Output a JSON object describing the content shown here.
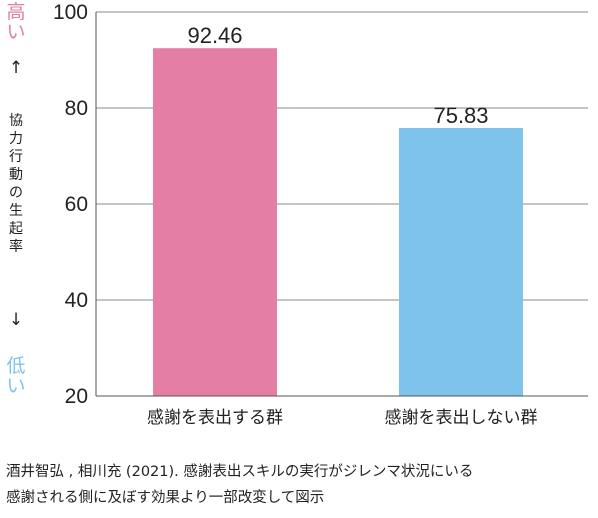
{
  "chart_data": {
    "type": "bar",
    "categories": [
      "感謝を表出する群",
      "感謝を表出しない群"
    ],
    "values": [
      92.46,
      75.83
    ],
    "value_labels": [
      "92.46",
      "75.83"
    ],
    "colors": [
      "#e57ea4",
      "#7ec3ea"
    ],
    "ylim": [
      20,
      100
    ],
    "yticks": [
      20,
      40,
      60,
      80,
      100
    ],
    "grid": true,
    "ylabel": {
      "high": "高い",
      "up_arrow": "↑",
      "main": "協力行動の生起率",
      "down_arrow": "↓",
      "low": "低い",
      "high_color": "#e07fa6",
      "low_color": "#7ec4ec"
    }
  },
  "source": {
    "line1": "酒井智弘 , 相川充 (2021). 感謝表出スキルの実行がジレンマ状況にいる",
    "line2": "感謝される側に及ぼす効果より一部改変して図示"
  }
}
